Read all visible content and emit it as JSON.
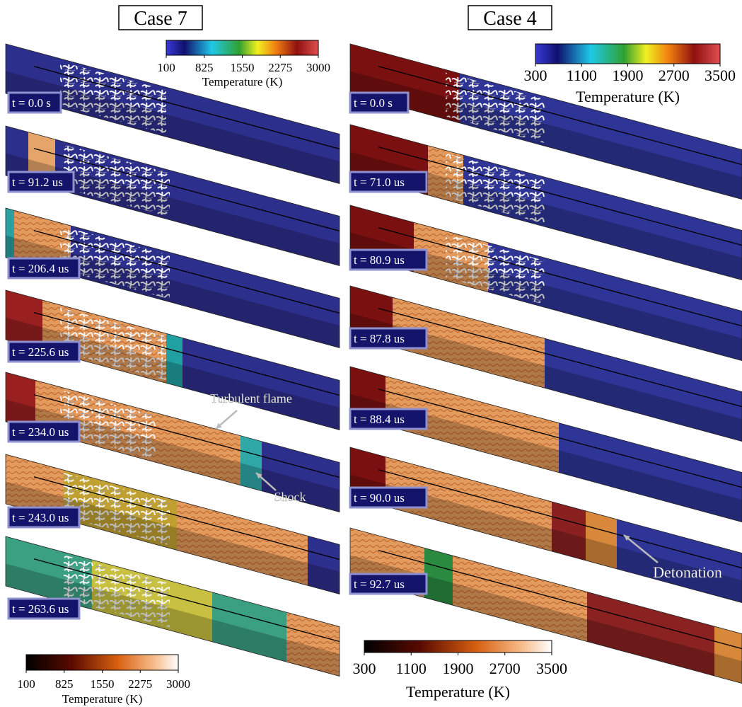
{
  "panels": [
    {
      "title": "Case 7",
      "times": [
        "t = 0.0 s",
        "t = 91.2 us",
        "t = 206.4 us",
        "t = 225.6 us",
        "t = 234.0 us",
        "t = 243.0 us",
        "t = 263.6 us"
      ],
      "colorbars": [
        {
          "ticks": [
            100,
            825,
            1550,
            2275,
            3000
          ],
          "label": "Temperature (K)"
        },
        {
          "ticks": [
            100,
            825,
            1550,
            2275,
            3000
          ],
          "label": "Temperature (K)"
        }
      ],
      "annotations": [
        "Turbulent flame",
        "Shock"
      ]
    },
    {
      "title": "Case 4",
      "times": [
        "t = 0.0 s",
        "t = 71.0 us",
        "t = 80.9 us",
        "t = 87.8 us",
        "t = 88.4 us",
        "t = 90.0 us",
        "t = 92.7 us"
      ],
      "colorbars": [
        {
          "ticks": [
            300,
            1100,
            1900,
            2700,
            3500
          ],
          "label": "Temperature (K)"
        },
        {
          "ticks": [
            300,
            1100,
            1900,
            2700,
            3500
          ],
          "label": "Temperature (K)"
        }
      ],
      "annotations": [
        "Detonation"
      ]
    }
  ]
}
